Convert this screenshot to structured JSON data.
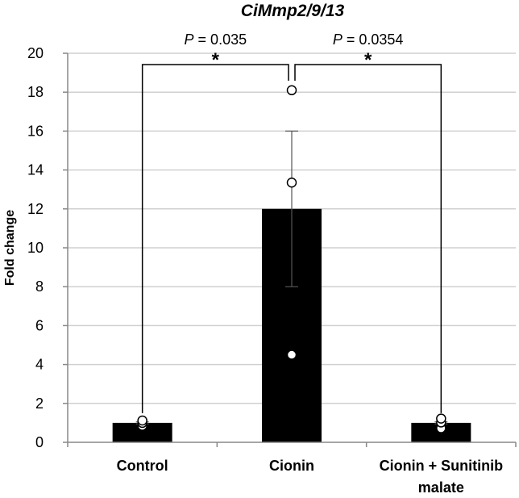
{
  "chart_data": {
    "type": "bar",
    "title": "CiMmp2/9/13",
    "ylabel": "Fold change",
    "ylim": [
      0,
      20
    ],
    "yticks": [
      0,
      2,
      4,
      6,
      8,
      10,
      12,
      14,
      16,
      18,
      20
    ],
    "grid": true,
    "categories": [
      {
        "lines": [
          "Control"
        ]
      },
      {
        "lines": [
          "Cionin"
        ]
      },
      {
        "lines": [
          "Cionin + Sunitinib",
          "malate"
        ]
      }
    ],
    "values": [
      1.0,
      12.0,
      1.0
    ],
    "error": [
      0.05,
      4.0,
      0.05
    ],
    "points": [
      [
        0.85,
        1.0,
        1.12
      ],
      [
        18.1,
        13.35,
        4.5
      ],
      [
        0.72,
        1.02,
        1.22
      ]
    ],
    "comparisons": [
      {
        "from": 0,
        "to": 1,
        "p_prefix": "P",
        "p_value": "= 0.035",
        "mark": "*"
      },
      {
        "from": 1,
        "to": 2,
        "p_prefix": "P",
        "p_value": "= 0.0354",
        "mark": "*"
      }
    ],
    "colors": {
      "bar": "#000000",
      "grid": "#d0d0d0",
      "axis": "#888888"
    }
  }
}
